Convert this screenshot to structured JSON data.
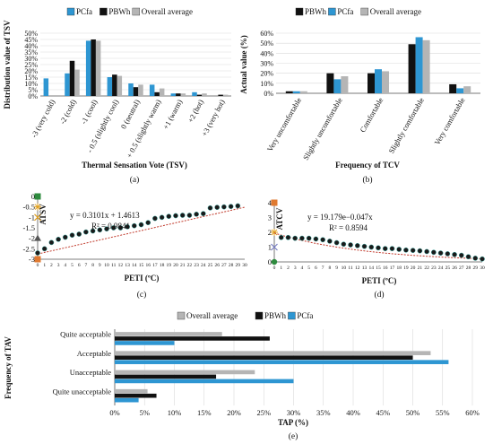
{
  "chart_data": [
    {
      "id": "a",
      "type": "bar",
      "caption": "(a)",
      "xlabel": "Thermal Sensation Vote (TSV)",
      "ylabel": "Distribution value of TSV",
      "ylim": [
        0,
        50
      ],
      "yticks": [
        "0%",
        "5%",
        "10%",
        "15%",
        "20%",
        "25%",
        "30%",
        "35%",
        "40%",
        "45%",
        "50%"
      ],
      "legend_position": "top",
      "categories": [
        "-3   (very cold)",
        "-2   (cold)",
        "-1   (cool)",
        "- 0.5 (slightly cool)",
        "0  (neutral)",
        "+ 0.5 (slightly warm)",
        "+1  (warm)",
        "+2   (hot)",
        "+3   (very hot)"
      ],
      "series": [
        {
          "name": "PCfa",
          "color": "#2e96d2",
          "values": [
            14,
            18,
            44,
            15,
            10,
            9,
            2,
            3,
            0
          ]
        },
        {
          "name": "PBWh",
          "color": "#111111",
          "values": [
            0,
            28,
            45,
            17,
            7,
            3,
            2,
            1,
            1
          ]
        },
        {
          "name": "Overall average",
          "color": "#b5b5b5",
          "values": [
            0,
            21,
            44,
            16,
            9,
            6,
            2,
            2,
            1
          ]
        }
      ],
      "grid": true
    },
    {
      "id": "b",
      "type": "bar",
      "caption": "(b)",
      "xlabel": "Frequency of TCV",
      "ylabel": "Actual value (%)",
      "ylim": [
        0,
        60
      ],
      "yticks": [
        "0%",
        "10%",
        "20%",
        "30%",
        "40%",
        "50%",
        "60%"
      ],
      "legend_position": "top",
      "categories": [
        "Very uncomfortable",
        "Slightly uncomfortable",
        "Comfortable",
        "Slightly comfortable",
        "Very comfortable"
      ],
      "series": [
        {
          "name": "PBWh",
          "color": "#111111",
          "values": [
            2,
            20,
            20,
            49,
            9
          ]
        },
        {
          "name": "PCfa",
          "color": "#2e96d2",
          "values": [
            2,
            14,
            24,
            56,
            5
          ]
        },
        {
          "name": "Overall average",
          "color": "#b5b5b5",
          "values": [
            2,
            17,
            22,
            53,
            7
          ]
        }
      ],
      "grid": true
    },
    {
      "id": "c",
      "type": "scatter",
      "caption": "(c)",
      "xlabel": "PETI  (ºC)",
      "ylabel": "ATSV",
      "xlim": [
        0,
        30
      ],
      "ylim": [
        -3,
        0
      ],
      "xticks": [
        0,
        1,
        2,
        3,
        4,
        5,
        6,
        7,
        8,
        9,
        10,
        11,
        12,
        13,
        14,
        15,
        16,
        17,
        18,
        19,
        20,
        21,
        22,
        23,
        24,
        25,
        26,
        27,
        28,
        29,
        30
      ],
      "yticks": [
        "0",
        "-0.5",
        "-1",
        "-1.5",
        "-2",
        "-2.5",
        "-3"
      ],
      "equation": "y = 0.3101x + 1.4613",
      "r2": "R² = 0.9841",
      "trend_color": "#c0392b",
      "point_color": "#1a1a1a",
      "x": [
        0,
        1,
        2,
        3,
        4,
        5,
        6,
        7,
        8,
        9,
        10,
        11,
        12,
        13,
        14,
        15,
        16,
        17,
        18,
        19,
        20,
        21,
        22,
        23,
        24,
        25,
        26,
        27,
        28,
        29
      ],
      "y": [
        -2.7,
        -2.5,
        -2.2,
        -2.05,
        -1.95,
        -1.85,
        -1.8,
        -1.7,
        -1.65,
        -1.6,
        -1.55,
        -1.5,
        -1.5,
        -1.45,
        -1.4,
        -1.35,
        -1.25,
        -1.05,
        -1,
        -0.95,
        -0.92,
        -0.9,
        -0.9,
        -0.85,
        -0.82,
        -0.55,
        -0.52,
        -0.5,
        -0.48,
        -0.45
      ],
      "axis_markers": [
        {
          "value": 0,
          "color": "#2e8b3e",
          "shape": "square"
        },
        {
          "value": -0.5,
          "color": "#e0a020",
          "shape": "star"
        },
        {
          "value": -1,
          "color": "#e0a020",
          "shape": "cross"
        },
        {
          "value": -2,
          "color": "#555555",
          "shape": "triangle"
        },
        {
          "value": -3,
          "color": "#e07a30",
          "shape": "square"
        }
      ]
    },
    {
      "id": "d",
      "type": "scatter",
      "caption": "(d)",
      "xlabel": "PETI  (ºC)",
      "ylabel": "ATCV",
      "xlim": [
        0,
        30
      ],
      "ylim": [
        0,
        4
      ],
      "xticks": [
        0,
        1,
        2,
        3,
        4,
        5,
        6,
        7,
        8,
        9,
        10,
        11,
        12,
        13,
        14,
        15,
        16,
        17,
        18,
        19,
        20,
        21,
        22,
        23,
        24,
        25,
        26,
        27,
        28,
        29,
        30
      ],
      "yticks": [
        "4",
        "3",
        "2",
        "1",
        "0"
      ],
      "equation": "y = 19.179e−0.047x",
      "r2": "R² = 0.8594",
      "trend_color": "#c0392b",
      "point_color": "#1a1a1a",
      "x": [
        1,
        2,
        3,
        4,
        5,
        6,
        7,
        8,
        9,
        10,
        11,
        12,
        13,
        14,
        15,
        16,
        17,
        18,
        19,
        20,
        21,
        22,
        23,
        24,
        25,
        26,
        27,
        28,
        29,
        30
      ],
      "y": [
        1.65,
        1.65,
        1.6,
        1.6,
        1.6,
        1.55,
        1.5,
        1.4,
        1.3,
        1.2,
        1.15,
        1.1,
        1.05,
        1,
        0.95,
        0.9,
        0.9,
        0.85,
        0.8,
        0.78,
        0.75,
        0.7,
        0.65,
        0.6,
        0.55,
        0.5,
        0.45,
        0.35,
        0.25,
        0.2
      ],
      "axis_markers": [
        {
          "value": 4,
          "color": "#e07a30",
          "shape": "square"
        },
        {
          "value": 2,
          "color": "#e0a020",
          "shape": "star"
        },
        {
          "value": 1,
          "color": "#7a7fc4",
          "shape": "cross"
        },
        {
          "value": 0,
          "color": "#2e8b3e",
          "shape": "circle"
        }
      ]
    },
    {
      "id": "e",
      "type": "bar",
      "orientation": "horizontal",
      "caption": "(e)",
      "xlabel": "TAP (%)",
      "ylabel": "Frequency of TAV",
      "xlim": [
        0,
        60
      ],
      "xticks": [
        "0%",
        "5%",
        "10%",
        "15%",
        "20%",
        "25%",
        "30%",
        "35%",
        "40%",
        "45%",
        "50%",
        "55%",
        "60%"
      ],
      "legend_position": "top",
      "categories": [
        "Quite acceptable",
        "Acceptable",
        "Unacceptable",
        "Quite unacceptable"
      ],
      "series": [
        {
          "name": "Overall average",
          "color": "#b5b5b5",
          "values": [
            18,
            53,
            23.5,
            5.5
          ]
        },
        {
          "name": "PBWh",
          "color": "#111111",
          "values": [
            26,
            50,
            17,
            7
          ]
        },
        {
          "name": "PCfa",
          "color": "#2e96d2",
          "values": [
            10,
            56,
            30,
            4
          ]
        }
      ],
      "grid": true
    }
  ]
}
